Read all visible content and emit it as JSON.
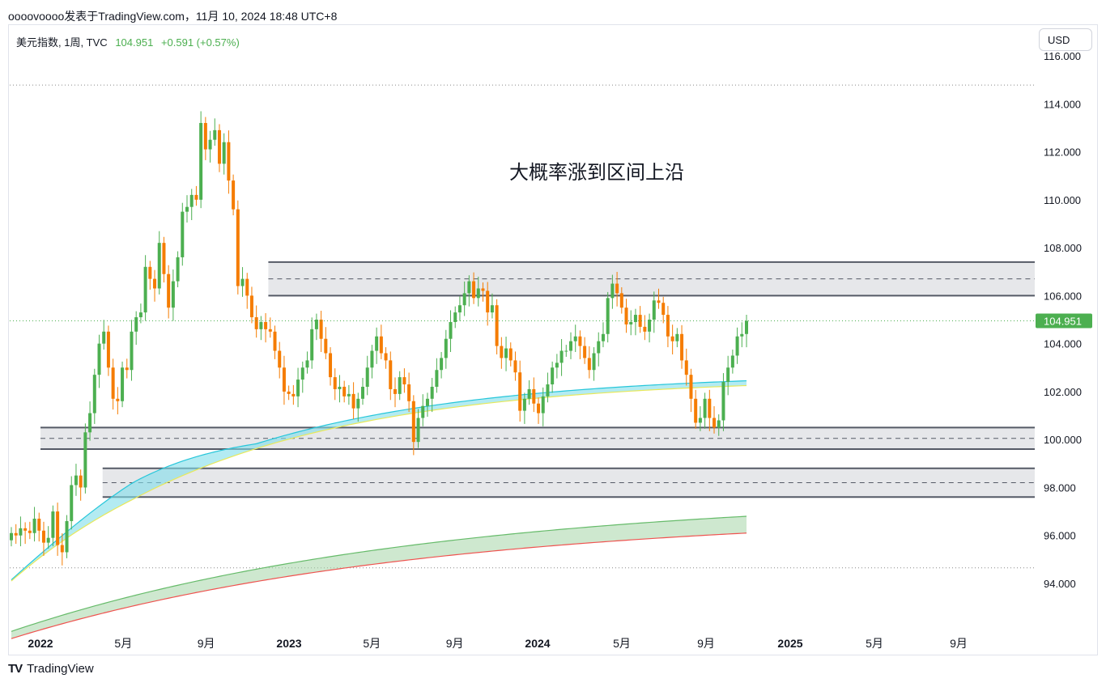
{
  "header": {
    "byline": "oooovoooo发表于TradingView.com，11月 10, 2024 18:48 UTC+8"
  },
  "legend": {
    "symbol": "美元指数, 1周, TVC",
    "price": "104.951",
    "change": "+0.591 (+0.57%)"
  },
  "currency_button": "USD",
  "footer": {
    "brand": "TradingView"
  },
  "colors": {
    "up": "#4caf50",
    "down": "#f57c00",
    "cyan_band": "#4dd0e1",
    "green_band": "#66bb6a",
    "red_line": "#ef5350",
    "yellow_line": "#e8e85a",
    "last_price_tag": "#4caf50"
  },
  "chart_data": {
    "type": "candlestick",
    "title": "",
    "annotation": "大概率涨到区间上沿",
    "current_price_label": "104.951",
    "y_ticks": [
      "116.000",
      "114.000",
      "112.000",
      "110.000",
      "108.000",
      "106.000",
      "104.000",
      "102.000",
      "100.000",
      "98.000",
      "96.000",
      "94.000"
    ],
    "ylim": [
      92.0,
      116.5
    ],
    "x_ticks": [
      {
        "label": "2022",
        "bold": true,
        "date": "2022-01"
      },
      {
        "label": "5月",
        "bold": false,
        "date": "2022-05"
      },
      {
        "label": "9月",
        "bold": false,
        "date": "2022-09"
      },
      {
        "label": "2023",
        "bold": true,
        "date": "2023-01"
      },
      {
        "label": "5月",
        "bold": false,
        "date": "2023-05"
      },
      {
        "label": "9月",
        "bold": false,
        "date": "2023-09"
      },
      {
        "label": "2024",
        "bold": true,
        "date": "2024-01"
      },
      {
        "label": "5月",
        "bold": false,
        "date": "2024-05"
      },
      {
        "label": "9月",
        "bold": false,
        "date": "2024-09"
      },
      {
        "label": "2025",
        "bold": true,
        "date": "2025-01"
      },
      {
        "label": "5月",
        "bold": false,
        "date": "2025-05"
      },
      {
        "label": "9月",
        "bold": false,
        "date": "2025-09"
      }
    ],
    "zones": [
      {
        "top": 107.4,
        "bottom": 106.0,
        "mid": 106.7,
        "start_date": "2022-12-01"
      },
      {
        "top": 100.5,
        "bottom": 99.6,
        "mid": 100.05,
        "start_date": "2022-01-01"
      },
      {
        "top": 98.8,
        "bottom": 97.6,
        "mid": 98.2,
        "start_date": "2022-04-01"
      }
    ],
    "hlines": [
      {
        "value": 114.78,
        "style": "dotted"
      },
      {
        "value": 94.65,
        "style": "dotted"
      }
    ],
    "weekly_close": [
      96.1,
      96.0,
      96.3,
      96.2,
      96.1,
      96.7,
      96.2,
      95.7,
      95.9,
      97.0,
      95.6,
      95.3,
      96.6,
      98.1,
      98.5,
      98.0,
      100.3,
      101.1,
      102.7,
      104.0,
      104.5,
      103.0,
      101.7,
      101.6,
      103.0,
      102.9,
      104.5,
      105.1,
      105.3,
      107.2,
      106.7,
      106.3,
      108.2,
      106.9,
      105.5,
      106.6,
      107.6,
      109.5,
      109.7,
      110.2,
      110.0,
      113.2,
      112.1,
      112.5,
      112.9,
      111.5,
      112.4,
      110.8,
      109.6,
      106.4,
      106.7,
      106.0,
      105.1,
      104.6,
      104.9,
      104.6,
      104.5,
      103.7,
      103.0,
      102.0,
      101.9,
      101.8,
      102.5,
      103.0,
      103.3,
      104.6,
      105.0,
      104.2,
      103.6,
      102.6,
      102.1,
      102.2,
      101.8,
      101.9,
      101.3,
      101.7,
      102.2,
      103.0,
      103.7,
      104.3,
      103.6,
      103.3,
      102.1,
      101.9,
      102.6,
      102.3,
      101.6,
      99.9,
      100.9,
      101.4,
      101.7,
      102.2,
      102.9,
      103.4,
      104.2,
      104.9,
      105.3,
      105.6,
      106.1,
      106.6,
      105.9,
      106.3,
      106.2,
      105.3,
      105.6,
      103.9,
      103.4,
      103.8,
      103.3,
      102.8,
      101.2,
      101.7,
      102.1,
      101.5,
      101.1,
      101.8,
      102.3,
      103.0,
      103.2,
      103.7,
      103.7,
      104.1,
      104.3,
      103.9,
      103.4,
      102.9,
      103.6,
      104.1,
      104.4,
      105.9,
      106.5,
      106.1,
      105.5,
      104.8,
      104.9,
      105.2,
      104.7,
      104.5,
      105.0,
      105.8,
      105.7,
      105.2,
      104.3,
      104.1,
      104.4,
      103.3,
      102.7,
      101.7,
      100.7,
      100.9,
      101.7,
      100.9,
      100.5,
      100.8,
      102.4,
      103.0,
      103.5,
      104.3,
      104.4,
      104.951
    ],
    "series": [
      {
        "name": "",
        "kind": "cyan-band"
      },
      {
        "name": "",
        "kind": "green-band"
      }
    ]
  }
}
